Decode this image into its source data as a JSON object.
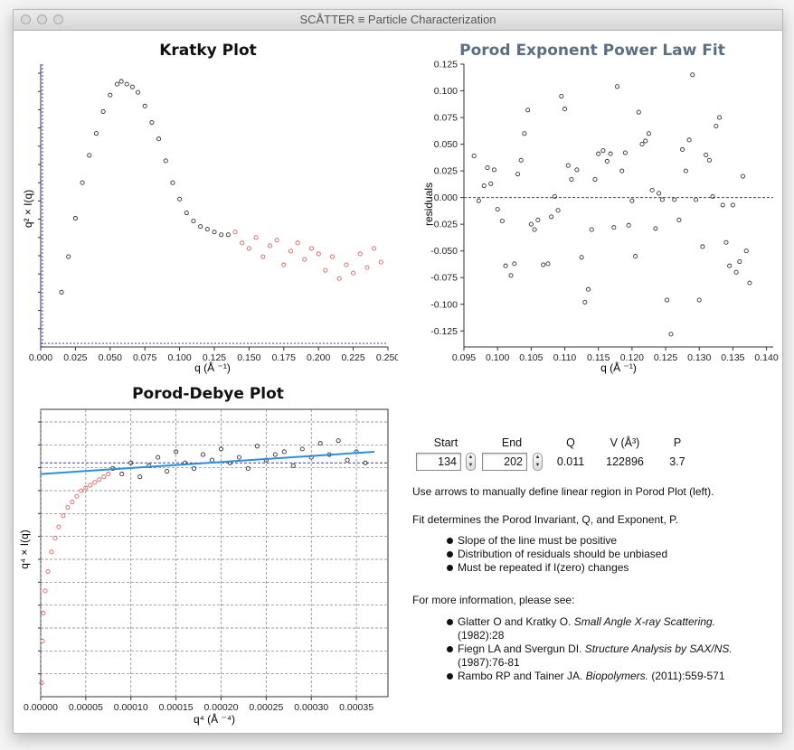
{
  "window": {
    "title": "SCÅTTER ≡ Particle Characterization"
  },
  "kratky": {
    "title": "Kratky Plot",
    "xlabel": "q (Å ⁻¹)",
    "ylabel": "q² × I(q)",
    "xticks": [
      "0.000",
      "0.025",
      "0.050",
      "0.075",
      "0.100",
      "0.125",
      "0.150",
      "0.175",
      "0.200",
      "0.225",
      "0.250"
    ]
  },
  "porod_fit": {
    "title": "Porod Exponent Power Law Fit",
    "xlabel": "q (Å ⁻¹)",
    "ylabel": "residuals",
    "xticks": [
      "0.095",
      "0.100",
      "0.105",
      "0.110",
      "0.115",
      "0.120",
      "0.125",
      "0.130",
      "0.135",
      "0.140"
    ],
    "yticks": [
      "0.125",
      "0.100",
      "0.075",
      "0.050",
      "0.025",
      "0.000",
      "-0.025",
      "-0.050",
      "-0.075",
      "-0.100",
      "-0.125"
    ]
  },
  "porod_debye": {
    "title": "Porod-Debye Plot",
    "xlabel": "q⁴ (Å ⁻⁴)",
    "ylabel": "q⁴ × I(q)",
    "xticks": [
      "0.00000",
      "0.00005",
      "0.00010",
      "0.00015",
      "0.00020",
      "0.00025",
      "0.00030",
      "0.00035"
    ]
  },
  "chart_data": [
    {
      "type": "scatter",
      "name": "kratky",
      "title": "Kratky Plot",
      "xlabel": "q (Å ⁻¹)",
      "ylabel": "q² × I(q)",
      "xlim": [
        0.0,
        0.25
      ],
      "ylim": [
        0,
        1
      ],
      "series": [
        {
          "name": "selected",
          "color": "#3a2a2a",
          "x": [
            0.015,
            0.02,
            0.025,
            0.03,
            0.035,
            0.04,
            0.045,
            0.05,
            0.055,
            0.058,
            0.062,
            0.066,
            0.07,
            0.075,
            0.08,
            0.085,
            0.09,
            0.095,
            0.1,
            0.105,
            0.11,
            0.115,
            0.12,
            0.125,
            0.13,
            0.135
          ],
          "y": [
            0.2,
            0.33,
            0.47,
            0.6,
            0.7,
            0.78,
            0.86,
            0.92,
            0.96,
            0.97,
            0.96,
            0.95,
            0.93,
            0.88,
            0.82,
            0.76,
            0.68,
            0.6,
            0.54,
            0.49,
            0.46,
            0.44,
            0.43,
            0.42,
            0.41,
            0.41
          ]
        },
        {
          "name": "excluded",
          "color": "#e06060",
          "x": [
            0.14,
            0.145,
            0.15,
            0.155,
            0.16,
            0.165,
            0.17,
            0.175,
            0.18,
            0.185,
            0.19,
            0.195,
            0.2,
            0.205,
            0.21,
            0.215,
            0.22,
            0.225,
            0.23,
            0.235,
            0.24,
            0.245
          ],
          "y": [
            0.42,
            0.38,
            0.36,
            0.4,
            0.33,
            0.37,
            0.39,
            0.3,
            0.35,
            0.38,
            0.32,
            0.36,
            0.34,
            0.28,
            0.33,
            0.25,
            0.3,
            0.27,
            0.34,
            0.29,
            0.36,
            0.31
          ]
        }
      ]
    },
    {
      "type": "scatter",
      "name": "porod_residuals",
      "title": "Porod Exponent Power Law Fit",
      "xlabel": "q (Å ⁻¹)",
      "ylabel": "residuals",
      "xlim": [
        0.095,
        0.141
      ],
      "ylim": [
        -0.14,
        0.125
      ],
      "reference_line_y": 0.0,
      "x": [
        0.0965,
        0.0972,
        0.098,
        0.0985,
        0.099,
        0.0995,
        0.1,
        0.1007,
        0.1012,
        0.102,
        0.1025,
        0.103,
        0.1035,
        0.104,
        0.1045,
        0.105,
        0.1055,
        0.106,
        0.1068,
        0.1075,
        0.108,
        0.1085,
        0.109,
        0.1095,
        0.11,
        0.1105,
        0.111,
        0.1118,
        0.1125,
        0.113,
        0.1135,
        0.114,
        0.1145,
        0.115,
        0.1157,
        0.1163,
        0.1168,
        0.1173,
        0.1178,
        0.1185,
        0.119,
        0.1195,
        0.12,
        0.1205,
        0.121,
        0.1215,
        0.122,
        0.1225,
        0.123,
        0.1235,
        0.124,
        0.1245,
        0.1252,
        0.1258,
        0.1263,
        0.127,
        0.1275,
        0.128,
        0.1285,
        0.129,
        0.1295,
        0.13,
        0.1305,
        0.131,
        0.1315,
        0.132,
        0.1325,
        0.133,
        0.1335,
        0.134,
        0.1345,
        0.135,
        0.1355,
        0.136,
        0.1365,
        0.137,
        0.1375
      ],
      "y": [
        0.039,
        -0.003,
        0.011,
        0.028,
        0.013,
        0.026,
        -0.011,
        -0.022,
        -0.064,
        -0.073,
        -0.062,
        0.022,
        0.035,
        0.06,
        0.082,
        -0.025,
        -0.03,
        -0.021,
        -0.063,
        -0.062,
        -0.018,
        0.001,
        -0.012,
        0.095,
        0.083,
        0.03,
        0.017,
        0.026,
        -0.056,
        -0.098,
        -0.086,
        -0.03,
        0.017,
        0.041,
        0.044,
        0.034,
        0.041,
        -0.028,
        0.104,
        0.025,
        0.042,
        -0.026,
        -0.003,
        -0.055,
        0.08,
        0.05,
        0.053,
        0.06,
        0.007,
        -0.029,
        0.004,
        -0.002,
        -0.096,
        -0.128,
        -0.002,
        -0.021,
        0.045,
        0.025,
        0.054,
        0.115,
        -0.002,
        -0.096,
        -0.046,
        0.04,
        0.035,
        0.001,
        0.067,
        0.075,
        -0.007,
        -0.042,
        -0.064,
        -0.007,
        -0.07,
        -0.06,
        0.02,
        -0.05,
        -0.08
      ]
    },
    {
      "type": "scatter",
      "name": "porod_debye",
      "title": "Porod-Debye Plot",
      "xlabel": "q⁴ (Å ⁻⁴)",
      "ylabel": "q⁴ × I(q)",
      "xlim": [
        0.0,
        0.000385
      ],
      "ylim": [
        0,
        1
      ],
      "series": [
        {
          "name": "excluded",
          "color": "#e06060",
          "x": [
            1e-06,
            2e-06,
            3e-06,
            5e-06,
            8e-06,
            1.2e-05,
            1.6e-05,
            2e-05,
            2.5e-05,
            3e-05,
            3.5e-05,
            4e-05,
            4.5e-05,
            5e-05,
            5.5e-05,
            6e-05,
            6.5e-05,
            7e-05,
            7.5e-05
          ],
          "y": [
            0.05,
            0.2,
            0.3,
            0.38,
            0.45,
            0.52,
            0.57,
            0.61,
            0.65,
            0.68,
            0.7,
            0.72,
            0.74,
            0.75,
            0.76,
            0.77,
            0.78,
            0.79,
            0.8
          ]
        },
        {
          "name": "selected",
          "color": "#3a2a2a",
          "x": [
            8e-05,
            9e-05,
            0.0001,
            0.00011,
            0.00012,
            0.00013,
            0.00014,
            0.00015,
            0.00016,
            0.00017,
            0.00018,
            0.00019,
            0.0002,
            0.00021,
            0.00022,
            0.00023,
            0.00024,
            0.00025,
            0.00026,
            0.00027,
            0.00028,
            0.00029,
            0.0003,
            0.00031,
            0.00032,
            0.00033,
            0.00034,
            0.00035,
            0.00036
          ],
          "y": [
            0.82,
            0.8,
            0.84,
            0.79,
            0.83,
            0.86,
            0.81,
            0.88,
            0.84,
            0.82,
            0.87,
            0.85,
            0.89,
            0.84,
            0.86,
            0.82,
            0.9,
            0.85,
            0.87,
            0.88,
            0.83,
            0.89,
            0.86,
            0.91,
            0.87,
            0.92,
            0.85,
            0.88,
            0.84
          ]
        },
        {
          "name": "fit",
          "color": "#2a8ee0",
          "type": "line",
          "x": [
            0.0,
            0.00037
          ],
          "y": [
            0.8,
            0.88
          ]
        }
      ],
      "reference_line_y": 0.84
    }
  ],
  "controls": {
    "headers": {
      "start": "Start",
      "end": "End",
      "q": "Q",
      "v": "V (Å³)",
      "p": "P"
    },
    "start_value": "134",
    "end_value": "202",
    "q_value": "0.011",
    "v_value": "122896",
    "p_value": "3.7"
  },
  "info": {
    "line1": "Use arrows to manually define linear region in Porod Plot (left).",
    "line2": "Fit determines the Porod Invariant, Q, and Exponent, P.",
    "bullets": [
      "Slope of the line must be positive",
      "Distribution of residuals should be unbiased",
      "Must be repeated if I(zero) changes"
    ],
    "more": "For more information, please see:",
    "refs": [
      {
        "authors": "Glatter O and Kratky O.",
        "title": "Small Angle X-ray Scattering.",
        "tail": "(1982):28"
      },
      {
        "authors": "Fiegn LA and Svergun DI.",
        "title": "Structure Analysis by SAX/NS.",
        "tail": "(1987):76-81"
      },
      {
        "authors": "Rambo RP and Tainer JA.",
        "title": "Biopolymers.",
        "tail": "(2011):559-571"
      }
    ]
  }
}
